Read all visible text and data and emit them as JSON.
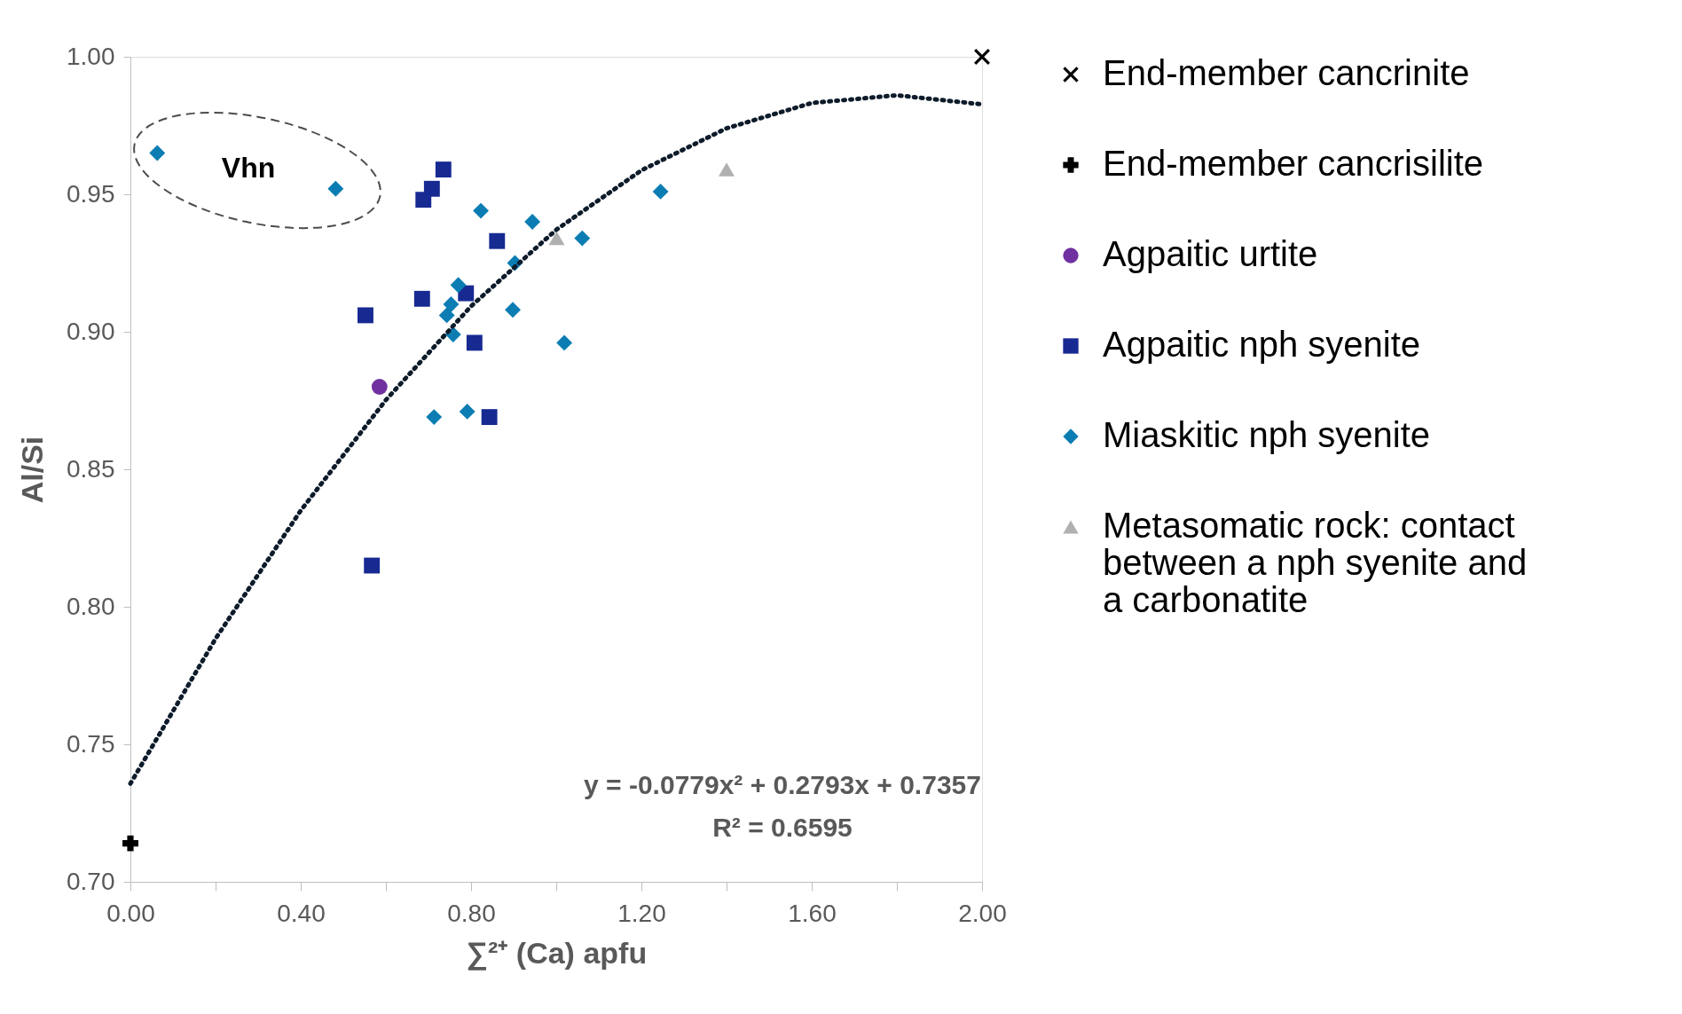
{
  "chart_data": {
    "type": "scatter",
    "xlabel": "∑²⁺ (Ca) apfu",
    "ylabel": "Al/Si",
    "xlim": [
      0,
      2
    ],
    "ylim": [
      0.7,
      1.0
    ],
    "xticks": [
      {
        "value": 0,
        "label": "0.00"
      },
      {
        "value": 0.2,
        "label": null
      },
      {
        "value": 0.4,
        "label": "0.40"
      },
      {
        "value": 0.6,
        "label": null
      },
      {
        "value": 0.8,
        "label": "0.80"
      },
      {
        "value": 1.0,
        "label": null
      },
      {
        "value": 1.2,
        "label": "1.20"
      },
      {
        "value": 1.4,
        "label": null
      },
      {
        "value": 1.6,
        "label": "1.60"
      },
      {
        "value": 1.8,
        "label": null
      },
      {
        "value": 2.0,
        "label": "2.00"
      }
    ],
    "yticks": [
      {
        "value": 0.7,
        "label": "0.70"
      },
      {
        "value": 0.75,
        "label": "0.75"
      },
      {
        "value": 0.8,
        "label": "0.80"
      },
      {
        "value": 0.85,
        "label": "0.85"
      },
      {
        "value": 0.9,
        "label": "0.90"
      },
      {
        "value": 0.95,
        "label": "0.95"
      },
      {
        "value": 1.0,
        "label": "1.00"
      }
    ],
    "grid": false,
    "legend": "right",
    "series": [
      {
        "name": "End-member cancrinite",
        "color": "#000000",
        "marker": "cross",
        "x": [
          2.0
        ],
        "values": [
          1.0
        ]
      },
      {
        "name": "End-member cancrisilite",
        "color": "#000000",
        "marker": "plus",
        "x": [
          0.0
        ],
        "values": [
          0.714
        ]
      },
      {
        "name": "Agpaitic urtite",
        "color": "#7030a0",
        "marker": "circle",
        "x": [
          0.585
        ],
        "values": [
          0.88
        ]
      },
      {
        "name": "Agpaitic nph syenite",
        "color": "#172a92",
        "marker": "square",
        "x": [
          0.735,
          0.708,
          0.688,
          0.861,
          0.552,
          0.685,
          0.788,
          0.808,
          0.843,
          0.567
        ],
        "values": [
          0.959,
          0.952,
          0.948,
          0.933,
          0.906,
          0.912,
          0.914,
          0.896,
          0.869,
          0.815
        ]
      },
      {
        "name": "Miaskitic nph syenite",
        "color": "#0b7db3",
        "marker": "diamond",
        "x": [
          0.063,
          0.482,
          0.823,
          0.944,
          1.061,
          0.903,
          1.245,
          0.77,
          0.753,
          0.743,
          0.758,
          0.898,
          1.019,
          0.713,
          0.791
        ],
        "values": [
          0.965,
          0.952,
          0.944,
          0.94,
          0.934,
          0.925,
          0.951,
          0.917,
          0.91,
          0.906,
          0.899,
          0.908,
          0.896,
          0.869,
          0.871
        ]
      },
      {
        "name": "Metasomatic rock: contact between a nph syenite and a carbonatite",
        "color": "#b0b0b0",
        "marker": "triangle",
        "x": [
          1.001,
          1.4
        ],
        "values": [
          0.934,
          0.959
        ]
      },
      {
        "type": "line",
        "color": "#0d1b2a",
        "line_style": "dotted",
        "x": [
          0,
          0.2,
          0.4,
          0.6,
          0.8,
          1.0,
          1.2,
          1.4,
          1.6,
          1.8,
          2.0
        ],
        "values": [
          0.7357,
          0.7884,
          0.835,
          0.8752,
          0.9093,
          0.9371,
          0.9587,
          0.974,
          0.9832,
          0.986,
          0.9827
        ]
      }
    ],
    "annotations": [
      "Vhn",
      "y = -0.0779x² + 0.2793x + 0.7357",
      "R² = 0.6595"
    ]
  }
}
